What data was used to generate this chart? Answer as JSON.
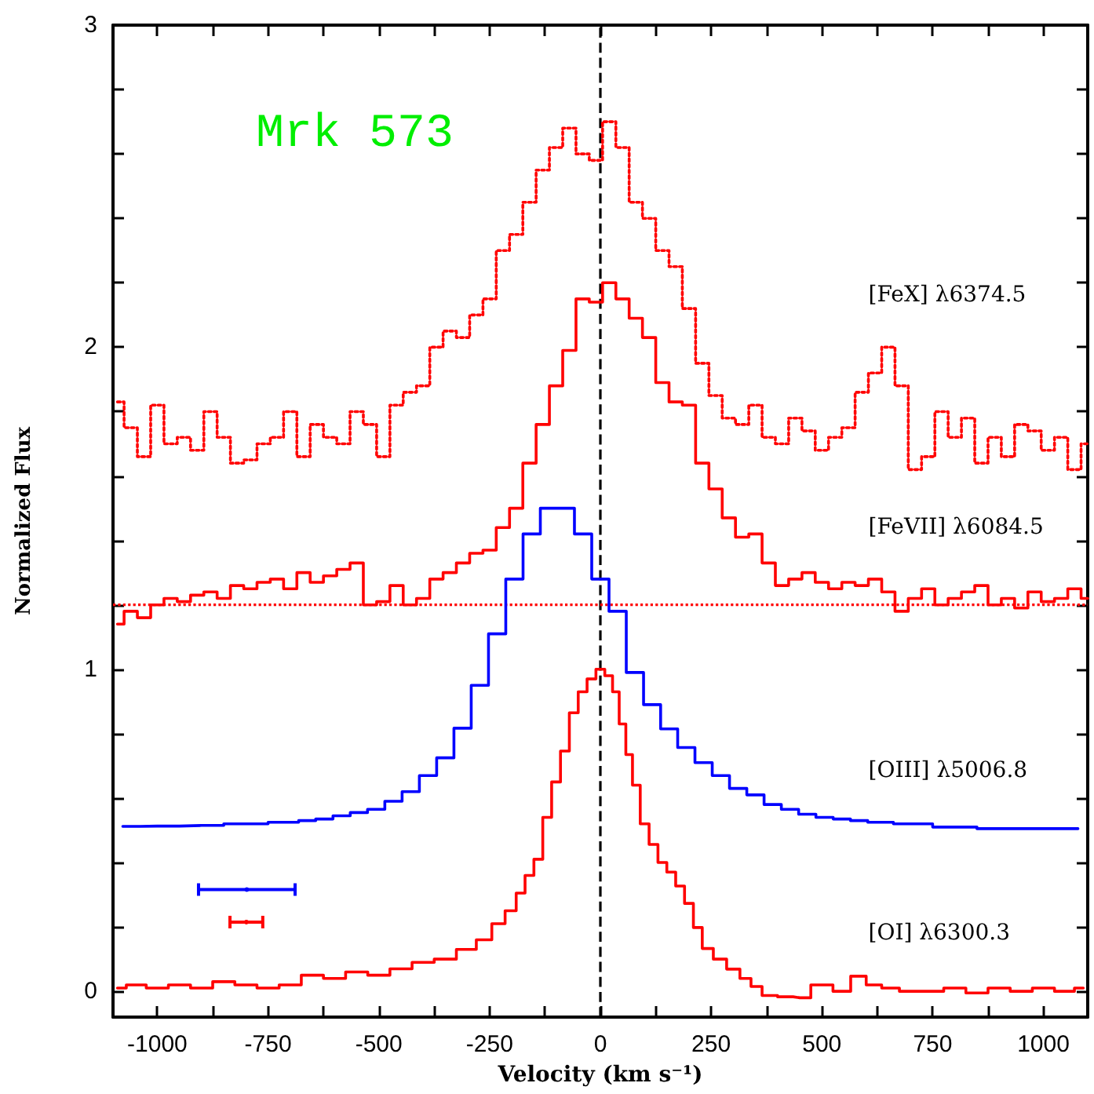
{
  "chart_data": {
    "type": "step",
    "title": "Mrk 573",
    "xlabel": "Velocity (km s⁻¹)",
    "ylabel": "Normalized Flux",
    "xlim": [
      -1100,
      1100
    ],
    "xticks": [
      -1000,
      {
        "value": -875,
        "label": null
      },
      -750,
      {
        "value": -625,
        "label": null
      },
      -500,
      {
        "value": -375,
        "label": null
      },
      -250,
      {
        "value": -125,
        "label": null
      },
      0,
      {
        "value": 125,
        "label": null
      },
      250,
      {
        "value": 375,
        "label": null
      },
      500,
      {
        "value": 625,
        "label": null
      },
      750,
      {
        "value": 875,
        "label": null
      },
      1000
    ],
    "ylim": [
      -0.08,
      3
    ],
    "yticks": [
      0,
      {
        "value": 0.2,
        "label": null
      },
      {
        "value": 0.4,
        "label": null
      },
      {
        "value": 0.6,
        "label": null
      },
      {
        "value": 0.8,
        "label": null
      },
      1,
      {
        "value": 1.2,
        "label": null
      },
      {
        "value": 1.4,
        "label": null
      },
      {
        "value": 1.6,
        "label": null
      },
      {
        "value": 1.8,
        "label": null
      },
      2,
      {
        "value": 2.2,
        "label": null
      },
      {
        "value": 2.4,
        "label": null
      },
      {
        "value": 2.6,
        "label": null
      },
      {
        "value": 2.8,
        "label": null
      },
      3
    ],
    "grid": false,
    "legend": false,
    "marker": "none",
    "series": [
      {
        "name": "[FeX] λ6374.5",
        "color": "#ff0000",
        "line_style": "dotted",
        "x": [
          -1090,
          -1060,
          -1030,
          -1000,
          -970,
          -940,
          -910,
          -880,
          -850,
          -820,
          -790,
          -760,
          -730,
          -700,
          -670,
          -640,
          -610,
          -580,
          -550,
          -520,
          -490,
          -460,
          -430,
          -400,
          -370,
          -340,
          -310,
          -280,
          -250,
          -220,
          -190,
          -160,
          -130,
          -100,
          -70,
          -40,
          -10,
          20,
          50,
          80,
          110,
          140,
          170,
          200,
          230,
          260,
          290,
          320,
          350,
          380,
          410,
          440,
          470,
          500,
          530,
          560,
          590,
          620,
          650,
          680,
          710,
          740,
          770,
          800,
          830,
          860,
          890,
          920,
          950,
          980,
          1010,
          1040,
          1070,
          1100
        ],
        "values": [
          1.83,
          1.75,
          1.66,
          1.82,
          1.7,
          1.72,
          1.68,
          1.8,
          1.72,
          1.64,
          1.65,
          1.7,
          1.72,
          1.8,
          1.66,
          1.76,
          1.72,
          1.7,
          1.8,
          1.76,
          1.66,
          1.82,
          1.86,
          1.88,
          2.0,
          2.05,
          2.03,
          2.1,
          2.15,
          2.3,
          2.35,
          2.45,
          2.55,
          2.62,
          2.68,
          2.6,
          2.58,
          2.7,
          2.62,
          2.45,
          2.4,
          2.3,
          2.25,
          2.12,
          1.95,
          1.85,
          1.78,
          1.76,
          1.82,
          1.72,
          1.7,
          1.78,
          1.74,
          1.68,
          1.72,
          1.75,
          1.86,
          1.92,
          2.0,
          1.88,
          1.62,
          1.66,
          1.8,
          1.72,
          1.78,
          1.64,
          1.72,
          1.66,
          1.76,
          1.74,
          1.68,
          1.72,
          1.62,
          1.7
        ]
      },
      {
        "name": "[FeVII] λ6084.5",
        "color": "#ff0000",
        "line_style": "solid",
        "x": [
          -1090,
          -1060,
          -1030,
          -1000,
          -970,
          -940,
          -910,
          -880,
          -850,
          -820,
          -790,
          -760,
          -730,
          -700,
          -670,
          -640,
          -610,
          -580,
          -550,
          -520,
          -490,
          -460,
          -430,
          -400,
          -370,
          -340,
          -310,
          -280,
          -250,
          -220,
          -190,
          -160,
          -130,
          -100,
          -70,
          -40,
          -10,
          20,
          50,
          80,
          110,
          140,
          170,
          200,
          230,
          260,
          290,
          320,
          350,
          380,
          410,
          440,
          470,
          500,
          530,
          560,
          590,
          620,
          650,
          680,
          710,
          740,
          770,
          800,
          830,
          860,
          890,
          920,
          950,
          980,
          1010,
          1040,
          1070,
          1100
        ],
        "values": [
          1.14,
          1.18,
          1.16,
          1.2,
          1.22,
          1.21,
          1.23,
          1.24,
          1.22,
          1.26,
          1.25,
          1.27,
          1.28,
          1.25,
          1.3,
          1.27,
          1.29,
          1.31,
          1.33,
          1.2,
          1.21,
          1.26,
          1.2,
          1.22,
          1.28,
          1.3,
          1.33,
          1.36,
          1.37,
          1.44,
          1.5,
          1.64,
          1.76,
          1.88,
          1.99,
          2.15,
          2.14,
          2.2,
          2.15,
          2.09,
          2.03,
          1.89,
          1.83,
          1.82,
          1.64,
          1.56,
          1.47,
          1.41,
          1.42,
          1.33,
          1.26,
          1.28,
          1.3,
          1.27,
          1.25,
          1.27,
          1.26,
          1.28,
          1.24,
          1.18,
          1.22,
          1.25,
          1.2,
          1.22,
          1.24,
          1.26,
          1.2,
          1.22,
          1.19,
          1.24,
          1.21,
          1.22,
          1.25,
          1.22
        ]
      },
      {
        "name": "[OIII] λ5006.8",
        "color": "#0000ff",
        "line_style": "solid",
        "x": [
          -1078,
          -1000,
          -900,
          -800,
          -700,
          -662,
          -623,
          -584,
          -545,
          -506,
          -467,
          -428,
          -389,
          -350,
          -311,
          -272,
          -233,
          -194,
          -155,
          -116,
          -78,
          -39,
          0,
          39,
          78,
          117,
          155,
          194,
          233,
          272,
          311,
          350,
          389,
          428,
          467,
          506,
          545,
          584,
          623,
          700,
          800,
          900,
          1000,
          1078
        ],
        "values": [
          0.512,
          0.513,
          0.515,
          0.52,
          0.525,
          0.53,
          0.535,
          0.545,
          0.555,
          0.565,
          0.59,
          0.62,
          0.67,
          0.725,
          0.817,
          0.95,
          1.11,
          1.28,
          1.42,
          1.5,
          1.5,
          1.42,
          1.28,
          1.18,
          0.99,
          0.89,
          0.815,
          0.757,
          0.71,
          0.67,
          0.63,
          0.61,
          0.58,
          0.565,
          0.55,
          0.54,
          0.535,
          0.53,
          0.525,
          0.52,
          0.51,
          0.505,
          0.505,
          0.505
        ]
      },
      {
        "name": "[OI] λ6300.3",
        "color": "#ff0000",
        "line_style": "solid",
        "x": [
          -1090,
          -1050,
          -1000,
          -950,
          -900,
          -850,
          -800,
          -750,
          -700,
          -650,
          -600,
          -550,
          -500,
          -450,
          -400,
          -350,
          -300,
          -260,
          -230,
          -200,
          -180,
          -160,
          -140,
          -120,
          -100,
          -80,
          -60,
          -40,
          -20,
          0,
          20,
          35,
          50,
          65,
          80,
          100,
          120,
          140,
          160,
          180,
          200,
          220,
          240,
          270,
          300,
          330,
          350,
          380,
          420,
          450,
          500,
          550,
          580,
          620,
          650,
          700,
          750,
          800,
          850,
          900,
          950,
          1000,
          1050,
          1090
        ],
        "values": [
          0.01,
          0.02,
          0.01,
          0.02,
          0.01,
          0.03,
          0.02,
          0.01,
          0.02,
          0.05,
          0.04,
          0.06,
          0.05,
          0.07,
          0.09,
          0.1,
          0.13,
          0.16,
          0.21,
          0.25,
          0.305,
          0.36,
          0.41,
          0.54,
          0.65,
          0.746,
          0.865,
          0.93,
          0.97,
          1.0,
          0.98,
          0.93,
          0.83,
          0.735,
          0.64,
          0.52,
          0.456,
          0.4,
          0.37,
          0.327,
          0.273,
          0.198,
          0.133,
          0.1,
          0.069,
          0.04,
          0.015,
          -0.013,
          -0.017,
          -0.02,
          0.02,
          0.0,
          0.047,
          0.02,
          0.01,
          0.0,
          0.0,
          0.01,
          -0.005,
          0.01,
          0.0,
          0.01,
          0.0,
          0.01
        ]
      },
      {
        "type": "scatter",
        "color": "#0000ff",
        "x": [
          -798
        ],
        "values": [
          0.316
        ],
        "xerrors": [
          109
        ]
      },
      {
        "type": "scatter",
        "color": "#ff0000",
        "x": [
          -799
        ],
        "values": [
          0.215
        ],
        "xerrors": [
          37
        ]
      }
    ],
    "ref_lines": [
      {
        "axis": "x",
        "value": 0,
        "color": "#000000",
        "line_style": "dashed"
      },
      {
        "axis": "y",
        "value": 1.2,
        "color": "#ff0000",
        "line_style": "dotted"
      }
    ]
  }
}
